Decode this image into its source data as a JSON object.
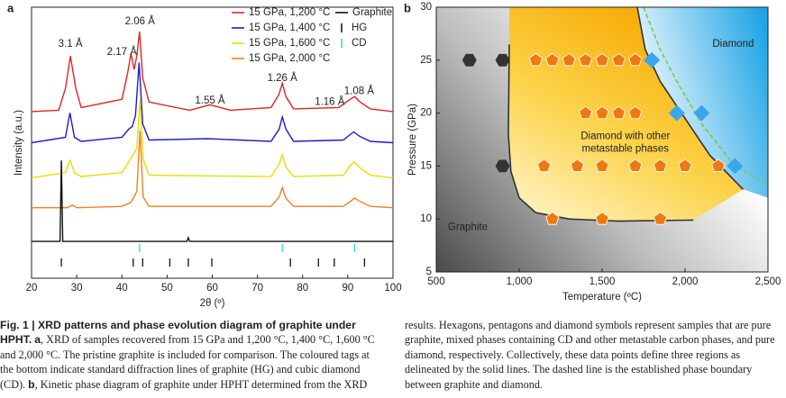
{
  "chart_data": [
    {
      "type": "line",
      "panel_label": "a",
      "xlabel": "2θ (º)",
      "ylabel": "Intensity (a.u.)",
      "xlim": [
        20,
        100
      ],
      "ylim": [
        0,
        100
      ],
      "xticks": [
        20,
        30,
        40,
        50,
        60,
        70,
        80,
        90,
        100
      ],
      "series": [
        {
          "name": "15 GPa, 1,200 °C",
          "color": "#e02424",
          "x": [
            20,
            26,
            27.5,
            28.6,
            29.8,
            31,
            40,
            41.3,
            42,
            42.7,
            43.3,
            43.9,
            44.6,
            46,
            55,
            59.5,
            64,
            73,
            74.8,
            75.5,
            76.3,
            78,
            88,
            90.5,
            91.5,
            92.7,
            95,
            100
          ],
          "values": [
            61.5,
            62,
            70,
            82,
            70,
            63,
            66,
            76,
            83,
            77,
            82,
            91,
            74,
            65,
            62,
            64,
            62,
            63,
            68,
            72,
            67,
            62.5,
            63,
            66,
            67,
            65,
            62.5,
            61.5
          ]
        },
        {
          "name": "15 GPa, 1,400 °C",
          "color": "#1c1cd2",
          "x": [
            20,
            27.5,
            28.5,
            29.5,
            31,
            40,
            41.5,
            42.3,
            43,
            43.8,
            44.6,
            46,
            59,
            73,
            74.8,
            75.5,
            76.3,
            78,
            89,
            90.5,
            91.3,
            92.5,
            95,
            100
          ],
          "values": [
            50,
            52,
            61,
            52,
            50.5,
            52,
            55,
            56,
            60,
            79.6,
            57,
            51,
            51.5,
            50.5,
            55,
            59.5,
            55,
            50.5,
            51,
            53,
            54,
            52.5,
            50.5,
            50
          ]
        },
        {
          "name": "15 GPa, 1,600 °C",
          "color": "#eedc00",
          "x": [
            20,
            27.5,
            28.5,
            29.5,
            31,
            40,
            41.5,
            42.5,
            43.3,
            44,
            44.7,
            46,
            73,
            74.8,
            75.5,
            76.3,
            78,
            89,
            90.5,
            91.4,
            92.5,
            95,
            100
          ],
          "values": [
            37,
            39,
            43.5,
            39,
            37.5,
            39,
            43,
            45.5,
            48,
            66,
            44,
            38,
            37.5,
            42,
            45.5,
            41,
            37.5,
            38,
            41.5,
            43,
            41,
            38,
            37
          ]
        },
        {
          "name": "15 GPa, 2,000 °C",
          "color": "#f08020",
          "x": [
            20,
            28,
            29,
            30,
            40,
            42,
            43.3,
            44,
            44.7,
            46,
            73,
            74.8,
            75.5,
            76.3,
            78,
            89,
            90.7,
            91.5,
            92.5,
            95,
            100
          ],
          "values": [
            26,
            26,
            27,
            26,
            26.5,
            28,
            32,
            54.5,
            30,
            26.5,
            26.5,
            30,
            33.5,
            29.5,
            26.5,
            26.5,
            28.5,
            29.6,
            28.5,
            26.5,
            26
          ]
        },
        {
          "name": "Graphite",
          "color": "#111111",
          "x": [
            20,
            26.3,
            26.6,
            26.9,
            54.4,
            54.7,
            55,
            100
          ],
          "values": [
            13.6,
            13.6,
            43.5,
            13.6,
            13.6,
            15,
            13.6,
            13.6
          ]
        }
      ],
      "tags": [
        {
          "name": "HG",
          "color": "#111111",
          "x": [
            26.6,
            42.5,
            44.6,
            50.6,
            54.7,
            59.9,
            77.3,
            83.5,
            87,
            93.7
          ]
        },
        {
          "name": "CD",
          "color": "#29d3e8",
          "x": [
            43.9,
            75.5,
            91.5
          ]
        }
      ],
      "annotations": [
        {
          "text": "3.1 Å",
          "x": 28.6,
          "y": 86.4
        },
        {
          "text": "2.17 Å",
          "x": 40,
          "y": 83.4
        },
        {
          "text": "2.06 Å",
          "x": 44,
          "y": 94.7
        },
        {
          "text": "1.55 Å",
          "x": 59.5,
          "y": 65.4
        },
        {
          "text": "1.26 Å",
          "x": 75.5,
          "y": 73.8
        },
        {
          "text": "1.16 Å",
          "x": 86,
          "y": 65
        },
        {
          "text": "1.08 Å",
          "x": 92.5,
          "y": 69
        }
      ]
    },
    {
      "type": "scatter",
      "panel_label": "b",
      "xlabel": "Temperature (ºC)",
      "ylabel": "Pressure (GPa)",
      "xlim": [
        500,
        2500
      ],
      "ylim": [
        5,
        30
      ],
      "xticks": [
        500,
        {
          "value": 1000,
          "label": "1,000"
        },
        {
          "value": 1500,
          "label": "1,500"
        },
        {
          "value": 2000,
          "label": "2,000"
        },
        {
          "value": 2500,
          "label": "2,500"
        }
      ],
      "yticks": [
        5,
        10,
        15,
        20,
        25,
        30
      ],
      "series": [
        {
          "marker": "hexagon",
          "color": "#333333",
          "x": [
            700,
            900,
            900
          ],
          "values": [
            25,
            25,
            15
          ]
        },
        {
          "marker": "pentagon",
          "color": "#f07810",
          "x": [
            1100,
            1200,
            1300,
            1400,
            1500,
            1600,
            1700,
            1400,
            1500,
            1600,
            1700,
            1150,
            1350,
            1500,
            1700,
            1850,
            2000,
            2200,
            1200,
            1500,
            1850
          ],
          "values": [
            25,
            25,
            25,
            25,
            25,
            25,
            25,
            20,
            20,
            20,
            20,
            15,
            15,
            15,
            15,
            15,
            15,
            15,
            10,
            10,
            10
          ]
        },
        {
          "marker": "diamond",
          "color": "#3aa6f0",
          "x": [
            1800,
            1950,
            2100,
            2300
          ],
          "values": [
            25,
            20,
            20,
            15
          ]
        }
      ],
      "boundaries": [
        {
          "style": "solid",
          "color": "#333333",
          "x": [
            940,
            935,
            950,
            1000,
            1100,
            1300,
            1600,
            2050
          ],
          "values": [
            26.5,
            18,
            14.5,
            12,
            10.6,
            10,
            9.8,
            9.9
          ]
        },
        {
          "style": "solid",
          "color": "#333333",
          "x": [
            1712,
            1760,
            1850,
            2000,
            2150,
            2350
          ],
          "values": [
            30,
            26,
            23,
            19.5,
            16,
            12.8
          ]
        },
        {
          "style": "dashed",
          "color": "#7ac943",
          "x": [
            1750,
            1850,
            1950,
            2100,
            2300,
            2500
          ],
          "values": [
            30,
            26,
            23,
            19,
            15,
            13.2
          ]
        }
      ],
      "annotations": [
        {
          "text": "Diamond",
          "x": 2290,
          "y": 26.5
        },
        {
          "text": "Diamond with other",
          "x": 1640,
          "y": 17.8
        },
        {
          "text": "metastable phases",
          "x": 1640,
          "y": 16.6
        },
        {
          "text": "Graphite",
          "x": 690,
          "y": 9.2
        }
      ]
    }
  ],
  "caption": {
    "title": "Fig. 1 | XRD patterns and phase evolution diagram of graphite under HPHT.",
    "label_a": "a",
    "text_a": ", XRD of samples recovered from 15 GPa and 1,200 °C, 1,400 °C, 1,600 °C and 2,000 °C. The pristine graphite is included for comparison. The coloured tags at the bottom indicate standard diffraction lines of graphite (HG) and cubic diamond (CD).",
    "label_b": "b",
    "text_b": ", Kinetic phase diagram of graphite under HPHT determined from the XRD results. Hexagons, pentagons and diamond symbols represent samples that are pure graphite, mixed phases containing CD and other metastable carbon phases, and pure diamond, respectively. Collectively, these data points define three regions as delineated by the solid lines. The dashed line is the established phase boundary between graphite and diamond."
  }
}
